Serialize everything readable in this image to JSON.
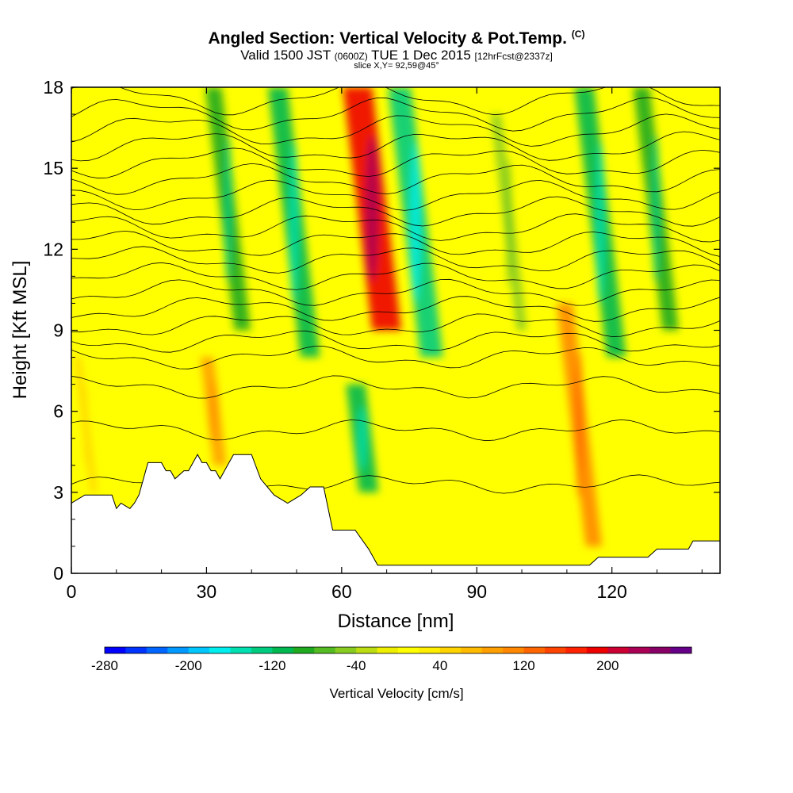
{
  "title": {
    "main": "Angled Section: Vertical Velocity & Pot.Temp.",
    "main_tag": "(C)",
    "valid_label": "Valid 1500 JST",
    "valid_zulu": "(0600Z)",
    "valid_date": "TUE 1 Dec 2015",
    "forecast": "[12hrFcst@2337z]",
    "slice": "slice X,Y= 92,59@45°"
  },
  "chart_data": {
    "type": "heatmap",
    "xlabel": "Distance [nm]",
    "ylabel": "Height [Kft MSL]",
    "xlim": [
      0,
      144
    ],
    "ylim": [
      0,
      18
    ],
    "x_ticks": [
      0,
      30,
      60,
      90,
      120
    ],
    "y_ticks": [
      0,
      3,
      6,
      9,
      12,
      15,
      18
    ],
    "colorbar": {
      "label": "Vertical Velocity [cm/s]",
      "range": [
        -280,
        280
      ],
      "step": 20,
      "tick_values": [
        -280,
        -200,
        -120,
        -40,
        40,
        120,
        200
      ],
      "tick_labels": [
        "-280",
        "-200",
        "-120",
        "-40",
        "40",
        "120",
        "200"
      ],
      "colors": [
        "#0000ff",
        "#0033ff",
        "#0066ff",
        "#0099ff",
        "#00c8ff",
        "#00eeee",
        "#00e0b0",
        "#00cc80",
        "#00b850",
        "#20aa20",
        "#55bb22",
        "#88cc22",
        "#bbdd11",
        "#eeee00",
        "#ffff00",
        "#ffee00",
        "#ffd400",
        "#ffbb00",
        "#ffa000",
        "#ff8800",
        "#ff6600",
        "#ff4400",
        "#ff2200",
        "#ee0000",
        "#cc0033",
        "#aa0055",
        "#880066",
        "#660088"
      ]
    },
    "velocity_features": [
      {
        "x": 5,
        "z_base": 3,
        "z_top": 8,
        "value": 40
      },
      {
        "x": 33,
        "z_base": 4,
        "z_top": 8,
        "value": 80
      },
      {
        "x": 38,
        "z_base": 9,
        "z_top": 18,
        "value": -100
      },
      {
        "x": 53,
        "z_base": 8,
        "z_top": 18,
        "value": -120
      },
      {
        "x": 66,
        "z_base": 3,
        "z_top": 7,
        "value": -120
      },
      {
        "x": 70,
        "z_base": 9,
        "z_top": 18,
        "value": 180
      },
      {
        "x": 80,
        "z_base": 8,
        "z_top": 18,
        "value": -140
      },
      {
        "x": 100,
        "z_base": 9,
        "z_top": 17,
        "value": -60
      },
      {
        "x": 116,
        "z_base": 1,
        "z_top": 10,
        "value": 100
      },
      {
        "x": 121,
        "z_base": 8,
        "z_top": 18,
        "value": -120
      },
      {
        "x": 133,
        "z_base": 9,
        "z_top": 18,
        "value": -100
      }
    ],
    "isentropes_kft": [
      3.3,
      5.3,
      6.9,
      8.0,
      8.6,
      9.2,
      9.8,
      10.4,
      11.0,
      11.6,
      12.2,
      12.8,
      13.4,
      14.0,
      14.6,
      15.2,
      15.8,
      16.4,
      17.0,
      17.6
    ],
    "terrain_kft": [
      [
        0,
        2.6
      ],
      [
        3,
        2.9
      ],
      [
        9,
        2.9
      ],
      [
        10,
        2.4
      ],
      [
        11,
        2.6
      ],
      [
        13,
        2.4
      ],
      [
        14,
        2.6
      ],
      [
        15,
        2.9
      ],
      [
        17,
        4.1
      ],
      [
        20,
        4.1
      ],
      [
        21,
        3.8
      ],
      [
        22,
        3.8
      ],
      [
        23,
        3.5
      ],
      [
        25,
        3.8
      ],
      [
        26,
        3.8
      ],
      [
        27,
        4.1
      ],
      [
        28,
        4.4
      ],
      [
        29,
        4.1
      ],
      [
        30,
        4.1
      ],
      [
        31,
        3.8
      ],
      [
        32,
        3.8
      ],
      [
        33,
        3.5
      ],
      [
        34,
        3.8
      ],
      [
        35,
        4.1
      ],
      [
        36,
        4.4
      ],
      [
        40,
        4.4
      ],
      [
        42,
        3.5
      ],
      [
        45,
        2.9
      ],
      [
        48,
        2.6
      ],
      [
        51,
        2.9
      ],
      [
        53,
        3.2
      ],
      [
        56,
        3.2
      ],
      [
        58,
        1.6
      ],
      [
        63,
        1.6
      ],
      [
        66,
        0.9
      ],
      [
        68,
        0.3
      ],
      [
        115,
        0.3
      ],
      [
        117,
        0.6
      ],
      [
        128,
        0.6
      ],
      [
        130,
        0.9
      ],
      [
        137,
        0.9
      ],
      [
        138,
        1.2
      ],
      [
        144,
        1.2
      ]
    ]
  }
}
